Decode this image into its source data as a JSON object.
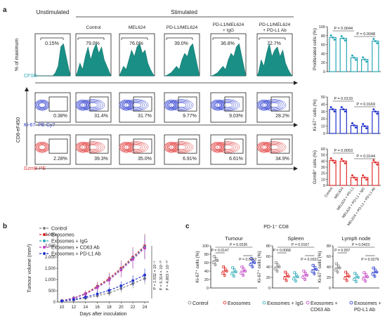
{
  "panels": {
    "a": "a",
    "b": "b",
    "c": "c"
  },
  "a": {
    "unstim_label": "Unstimulated",
    "stim_label": "Stimulated",
    "conditions": [
      "Control",
      "MEL624",
      "PD-L1/MEL624",
      "PD-L1/MEL624\n+ IgG",
      "PD-L1/MEL624\n+ PD-L1 Ab"
    ],
    "row1": {
      "ylabel": "% of maximum",
      "xlabel": "CFSE",
      "xlabel_color": "#2aa7b5",
      "values": [
        "0.15%",
        "79.0%",
        "76.0%",
        "39.0%",
        "36.8%",
        "72.7%"
      ]
    },
    "row2": {
      "xlabel": "Ki-67–PE-Cy7",
      "xlabel_color": "#2233cc",
      "values": [
        "0.38%",
        "31.4%",
        "31.7%",
        "9.77%",
        "9.03%",
        "28.2%"
      ]
    },
    "row3": {
      "xlabel": "GzmB-PE",
      "xlabel_color": "#e03030",
      "values": [
        "2.28%",
        "39.3%",
        "35.0%",
        "6.91%",
        "6.61%",
        "34.9%"
      ]
    },
    "cd8_label": "CD8-eF450",
    "bars": [
      {
        "ylabel": "Proliferated cells (%)",
        "color": "#2aa7b5",
        "yticks": [
          "0",
          "20",
          "40",
          "60",
          "80",
          "100"
        ],
        "p1": "P = 0.0044",
        "p2": "P = 0.0048",
        "chart_data": {
          "type": "bar",
          "categories": [
            "Control",
            "MEL624",
            "MEL624 + PD-L1",
            "MEL624 + PD-L1 + IgG",
            "MEL624 + PD-L1 + PD-L1 Ab"
          ],
          "values": [
            76,
            74,
            31,
            27,
            68
          ],
          "ylim": [
            0,
            100
          ]
        }
      },
      {
        "ylabel": "Ki-67⁺ cells (%)",
        "color": "#2233cc",
        "yticks": [
          "0",
          "10",
          "20",
          "30",
          "40",
          "50"
        ],
        "p1": "P = 0.0133",
        "p2": "P = 0.0169",
        "chart_data": {
          "type": "bar",
          "categories": [
            "Control",
            "MEL624",
            "MEL624 + PD-L1",
            "MEL624 + PD-L1 + IgG",
            "MEL624 + PD-L1 + PD-L1 Ab"
          ],
          "values": [
            33,
            33,
            11,
            10,
            30
          ],
          "ylim": [
            0,
            50
          ]
        }
      },
      {
        "ylabel": "GzmB⁺ cells (%)",
        "color": "#e03030",
        "yticks": [
          "0",
          "10",
          "20",
          "30",
          "40",
          "50",
          "60"
        ],
        "p1": "P = 0.0053",
        "p2": "P = 0.0144",
        "chart_data": {
          "type": "bar",
          "categories": [
            "Control",
            "MEL624",
            "MEL624 + PD-L1",
            "MEL624 + PD-L1 + IgG",
            "MEL624 + PD-L1 + PD-L1 Ab"
          ],
          "values": [
            41,
            40,
            13,
            13,
            38
          ],
          "ylim": [
            0,
            60
          ]
        }
      }
    ],
    "bar_xlabels": [
      "Control",
      "MEL624",
      "MEL624 + PD-L1",
      "MEL624 + PD-L1 + IgG",
      "MEL624 + PD-L1 + PD-L1 Ab"
    ]
  },
  "b": {
    "ylabel": "Tumour volume (mm³)",
    "xlabel": "Days after inoculation",
    "legend": [
      "Control",
      "Exosomes",
      "Exosomes + IgG",
      "Exosomes + CD63 Ab",
      "Exosomes + PD-L1 Ab"
    ],
    "pvalues": [
      "P = 1.932 × 10⁻⁹",
      "P = 5.314 × 10⁻¹⁰",
      "P = 4.803 × 10⁻¹⁰"
    ],
    "chart_data": {
      "type": "line",
      "x": [
        10,
        12,
        14,
        16,
        18,
        20,
        22,
        24
      ],
      "xticks": [
        "10",
        "12",
        "14",
        "16",
        "18",
        "20",
        "22",
        "24"
      ],
      "yticks": [
        "0",
        "500",
        "1,000",
        "1,500",
        "2,000",
        "2,500",
        "3,000"
      ],
      "ylim": [
        0,
        3000
      ],
      "series": [
        {
          "name": "Control",
          "color": "#808080",
          "values": [
            40,
            90,
            170,
            280,
            400,
            600,
            820,
            1050
          ]
        },
        {
          "name": "Exosomes",
          "color": "#e02020",
          "values": [
            60,
            180,
            380,
            700,
            1050,
            1500,
            2000,
            2500
          ]
        },
        {
          "name": "Exosomes + IgG",
          "color": "#2aa7b5",
          "values": [
            55,
            170,
            360,
            660,
            1000,
            1450,
            1950,
            2450
          ]
        },
        {
          "name": "Exosomes + CD63 Ab",
          "color": "#c040c0",
          "values": [
            55,
            160,
            350,
            640,
            980,
            1420,
            1900,
            2400
          ]
        },
        {
          "name": "Exosomes + PD-L1 Ab",
          "color": "#2233cc",
          "values": [
            45,
            110,
            220,
            360,
            520,
            720,
            950,
            1200
          ]
        }
      ]
    }
  },
  "c": {
    "title": "PD-1⁺ CD8",
    "groups": [
      {
        "title": "Tumour",
        "ylabel": "Ki-67⁺ cells (%)",
        "yticks": [
          "0",
          "20",
          "40",
          "60",
          "80",
          "100"
        ],
        "ymax": 100,
        "p": [
          "P = 0.0147",
          "P = 0.0236",
          "P = 0.0212"
        ],
        "chart_data": {
          "type": "scatter",
          "categories": [
            "Control",
            "Exosomes",
            "Exosomes + IgG",
            "Exosomes + CD63 Ab",
            "Exosomes + PD-L1 Ab"
          ],
          "values": [
            65,
            40,
            38,
            40,
            60
          ],
          "ylim": [
            0,
            100
          ]
        }
      },
      {
        "title": "Spleen",
        "ylabel": "Ki-67⁺ cells (%)",
        "yticks": [
          "0",
          "20",
          "40",
          "60",
          "80"
        ],
        "ymax": 80,
        "p": [
          "P = 0.0068",
          "P = 0.0167",
          "P = 0.0321"
        ],
        "chart_data": {
          "type": "scatter",
          "categories": [
            "Control",
            "Exosomes",
            "Exosomes + IgG",
            "Exosomes + CD63 Ab",
            "Exosomes + PD-L1 Ab"
          ],
          "values": [
            40,
            22,
            21,
            24,
            35
          ],
          "ylim": [
            0,
            80
          ]
        }
      },
      {
        "title": "Lymph node",
        "ylabel": "Ki-67⁺ cells (%)",
        "yticks": [
          "0",
          "20",
          "40",
          "60",
          "80"
        ],
        "ymax": 80,
        "p": [
          "P = 0.007",
          "P = 0.0423",
          "P = 0.0279"
        ],
        "chart_data": {
          "type": "scatter",
          "categories": [
            "Control",
            "Exosomes",
            "Exosomes + IgG",
            "Exosomes + CD63 Ab",
            "Exosomes + PD-L1 Ab"
          ],
          "values": [
            38,
            22,
            20,
            21,
            30
          ],
          "ylim": [
            0,
            80
          ]
        }
      }
    ],
    "legend": [
      "Control",
      "Exosomes",
      "Exosomes + IgG",
      "Exosomes +\nCD63 Ab",
      "Exosomes +\nPD-L1 Ab"
    ],
    "colors": [
      "#808080",
      "#e02020",
      "#2aa7b5",
      "#c040c0",
      "#2233cc"
    ]
  }
}
